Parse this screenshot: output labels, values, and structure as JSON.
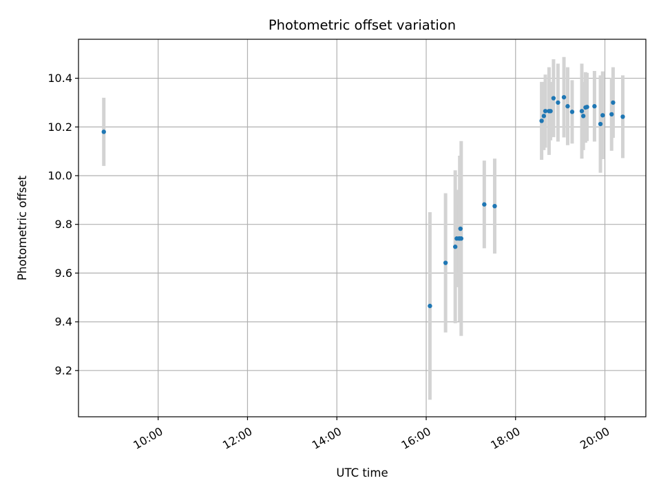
{
  "chart_data": {
    "type": "scatter",
    "title": "Photometric offset variation",
    "xlabel": "UTC time",
    "ylabel": "Photometric offset",
    "x_unit": "hours UTC",
    "xlim": [
      "08:13",
      "20:55"
    ],
    "ylim": [
      9.01,
      10.56
    ],
    "x_ticks": [
      "10:00",
      "12:00",
      "14:00",
      "16:00",
      "18:00",
      "20:00"
    ],
    "y_ticks": [
      "9.2",
      "9.4",
      "9.6",
      "9.8",
      "10.0",
      "10.2",
      "10.4"
    ],
    "grid": true,
    "marker_color": "#1f77b4",
    "errorbar_color": "#d3d3d3",
    "points": [
      {
        "x": "08:47",
        "y": 10.18,
        "err": 0.14
      },
      {
        "x": "16:05",
        "y": 9.465,
        "err": 0.385
      },
      {
        "x": "16:26",
        "y": 9.642,
        "err": 0.286
      },
      {
        "x": "16:39",
        "y": 9.708,
        "err": 0.314
      },
      {
        "x": "16:41",
        "y": 9.742,
        "err": 0.2
      },
      {
        "x": "16:44",
        "y": 9.742,
        "err": 0.14
      },
      {
        "x": "16:45",
        "y": 9.742,
        "err": 0.34
      },
      {
        "x": "16:46",
        "y": 9.782,
        "err": 0.3
      },
      {
        "x": "16:47",
        "y": 9.742,
        "err": 0.4
      },
      {
        "x": "17:18",
        "y": 9.882,
        "err": 0.18
      },
      {
        "x": "17:32",
        "y": 9.875,
        "err": 0.195
      },
      {
        "x": "18:35",
        "y": 10.225,
        "err": 0.16
      },
      {
        "x": "18:38",
        "y": 10.245,
        "err": 0.14
      },
      {
        "x": "18:40",
        "y": 10.265,
        "err": 0.15
      },
      {
        "x": "18:45",
        "y": 10.265,
        "err": 0.18
      },
      {
        "x": "18:47",
        "y": 10.265,
        "err": 0.12
      },
      {
        "x": "18:51",
        "y": 10.318,
        "err": 0.16
      },
      {
        "x": "18:57",
        "y": 10.3,
        "err": 0.16
      },
      {
        "x": "19:05",
        "y": 10.322,
        "err": 0.165
      },
      {
        "x": "19:10",
        "y": 10.285,
        "err": 0.16
      },
      {
        "x": "19:16",
        "y": 10.262,
        "err": 0.13
      },
      {
        "x": "19:29",
        "y": 10.265,
        "err": 0.195
      },
      {
        "x": "19:31",
        "y": 10.245,
        "err": 0.14
      },
      {
        "x": "19:34",
        "y": 10.28,
        "err": 0.145
      },
      {
        "x": "19:36",
        "y": 10.282,
        "err": 0.14
      },
      {
        "x": "19:46",
        "y": 10.285,
        "err": 0.145
      },
      {
        "x": "19:54",
        "y": 10.212,
        "err": 0.2
      },
      {
        "x": "19:57",
        "y": 10.248,
        "err": 0.18
      },
      {
        "x": "20:09",
        "y": 10.252,
        "err": 0.15
      },
      {
        "x": "20:11",
        "y": 10.3,
        "err": 0.145
      },
      {
        "x": "20:24",
        "y": 10.242,
        "err": 0.17
      }
    ]
  }
}
